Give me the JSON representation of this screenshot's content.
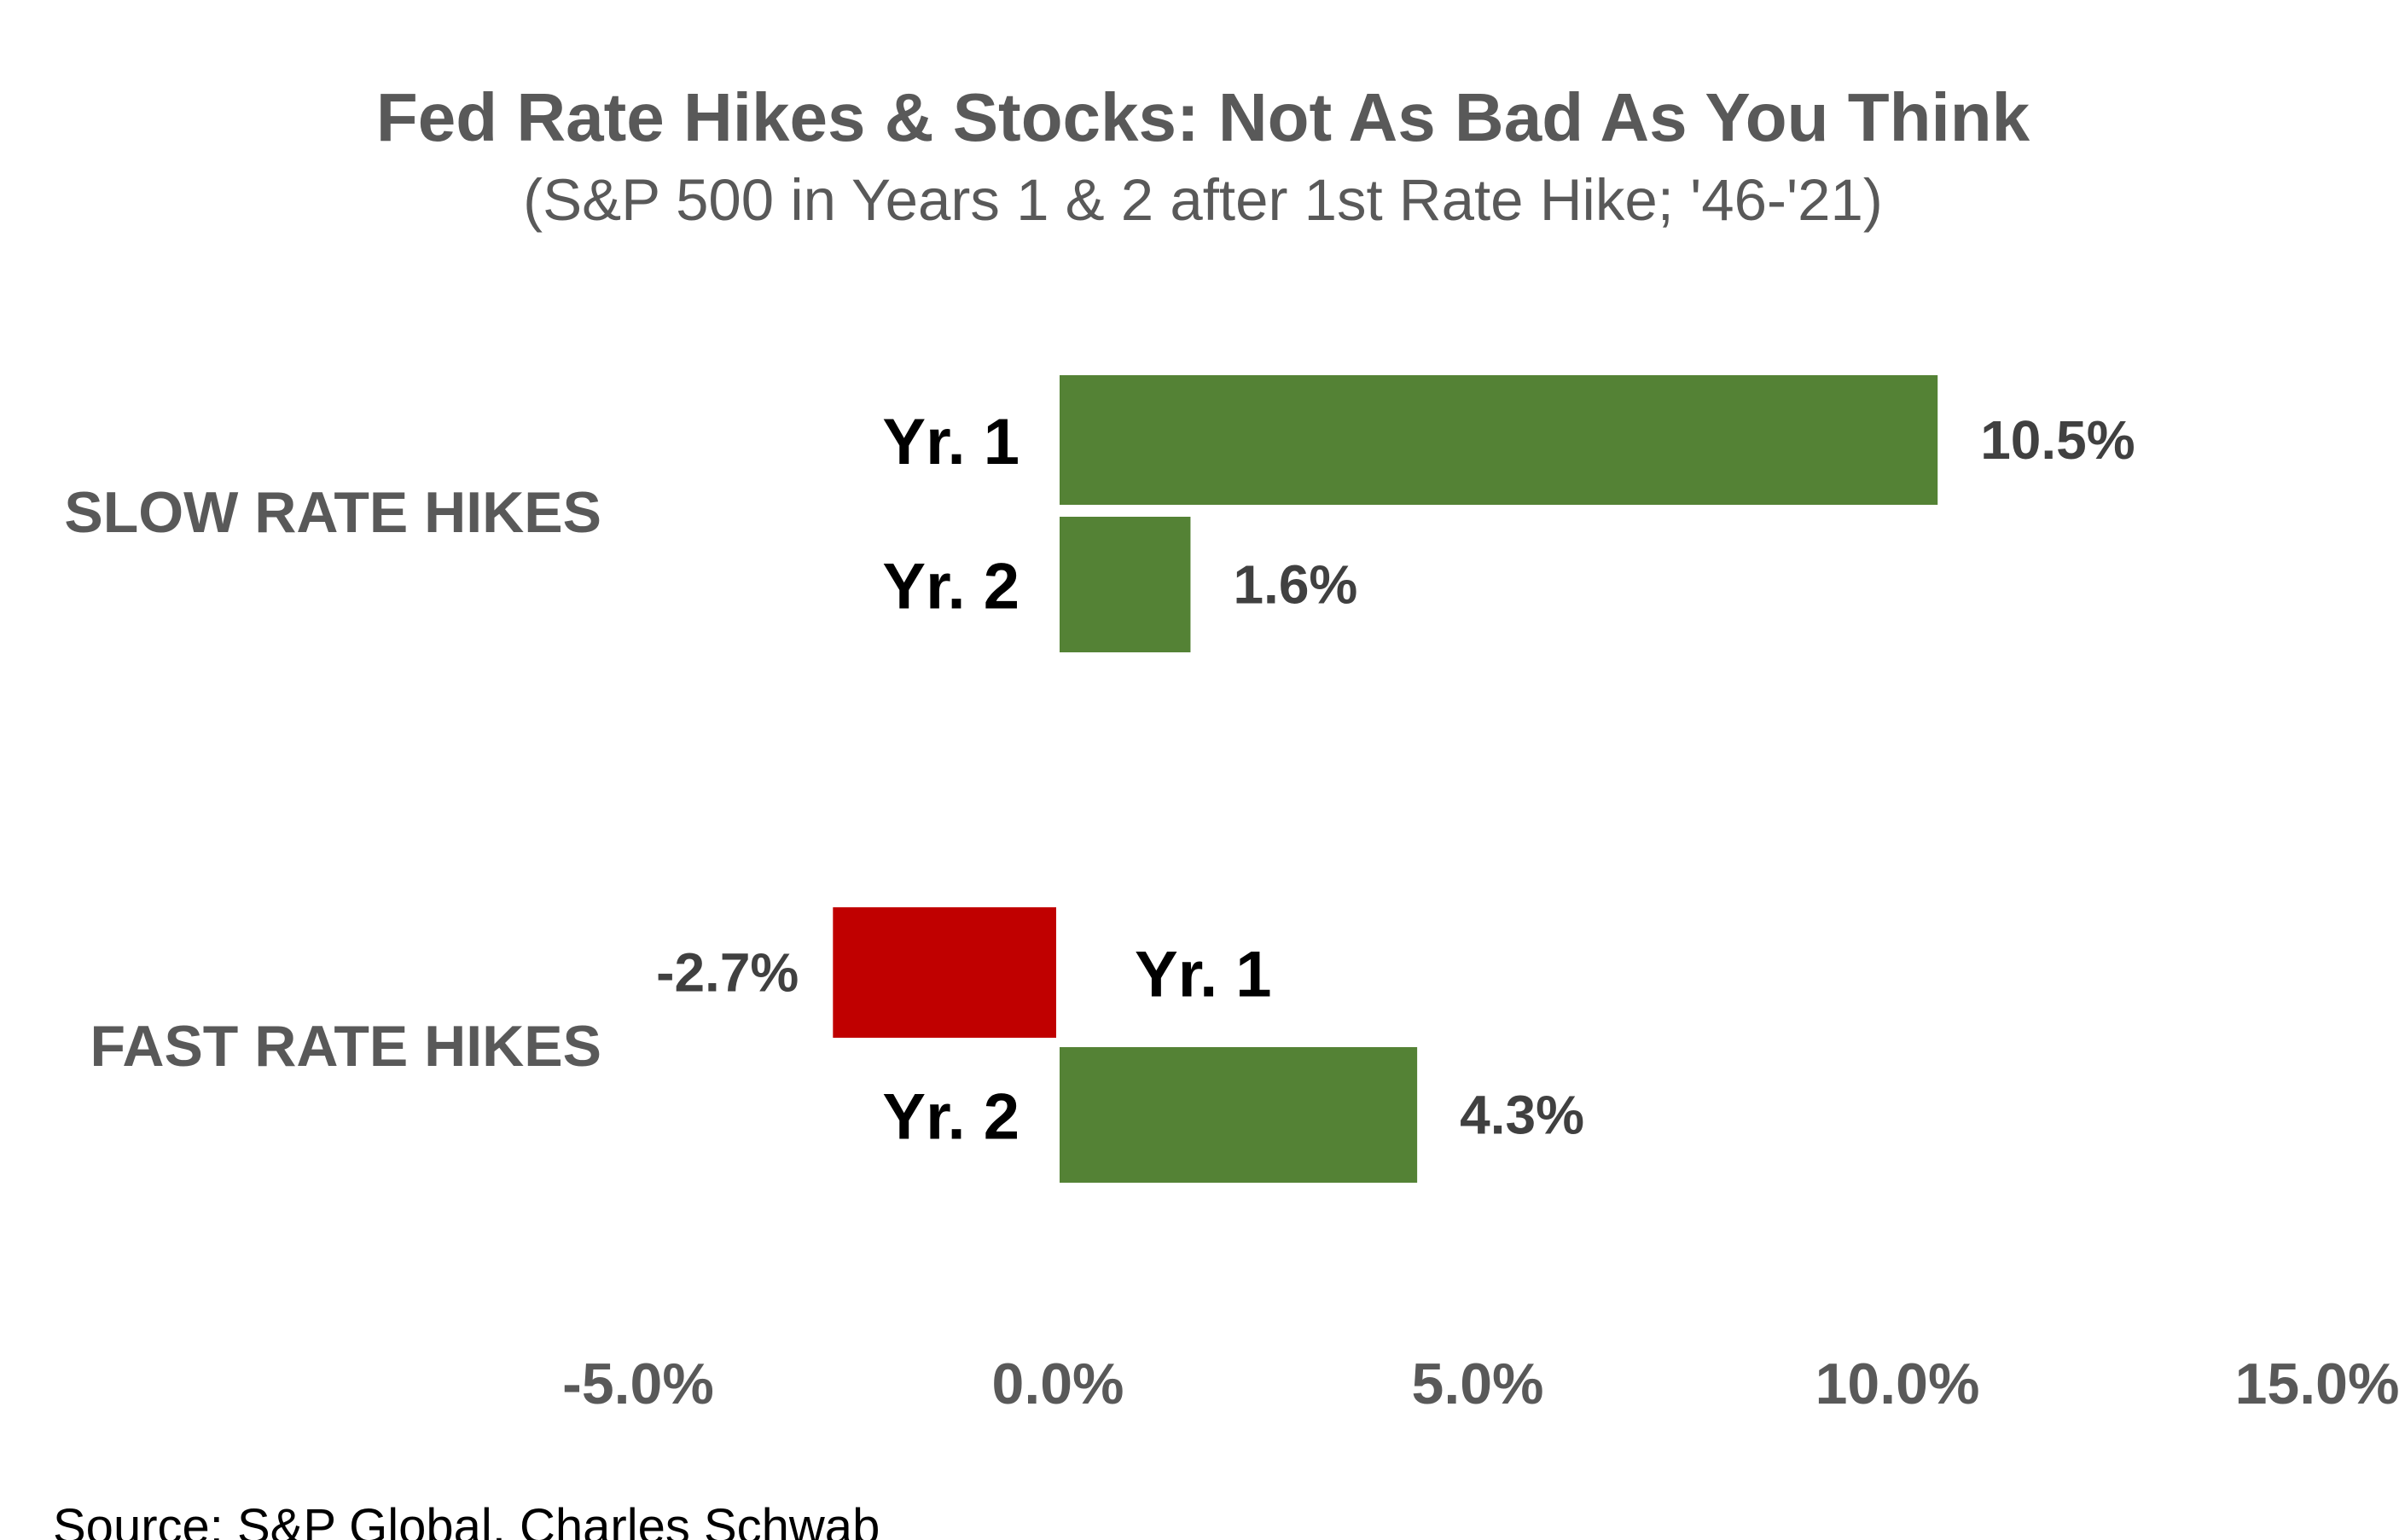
{
  "chart_data": {
    "type": "bar",
    "orientation": "horizontal",
    "title": "Fed Rate Hikes & Stocks: Not As Bad As You Think",
    "subtitle": "(S&P 500 in Years 1 & 2 after 1st Rate Hike; '46-'21)",
    "xlim": [
      -5.0,
      15.0
    ],
    "x_ticks": [
      -5.0,
      0.0,
      5.0,
      10.0,
      15.0
    ],
    "x_tick_labels": [
      "-5.0%",
      "0.0%",
      "5.0%",
      "10.0%",
      "15.0%"
    ],
    "grid": false,
    "groups": [
      {
        "label": "SLOW RATE HIKES",
        "bars": [
          {
            "series": "Yr. 1",
            "value": 10.5,
            "label": "10.5%"
          },
          {
            "series": "Yr. 2",
            "value": 1.6,
            "label": "1.6%"
          }
        ]
      },
      {
        "label": "FAST RATE HIKES",
        "bars": [
          {
            "series": "Yr. 1",
            "value": -2.7,
            "label": "-2.7%"
          },
          {
            "series": "Yr. 2",
            "value": 4.3,
            "label": "4.3%"
          }
        ]
      }
    ],
    "colors": {
      "positive": "#548235",
      "negative": "#C00000"
    },
    "source": "Source: S&P Global, Charles Schwab"
  }
}
